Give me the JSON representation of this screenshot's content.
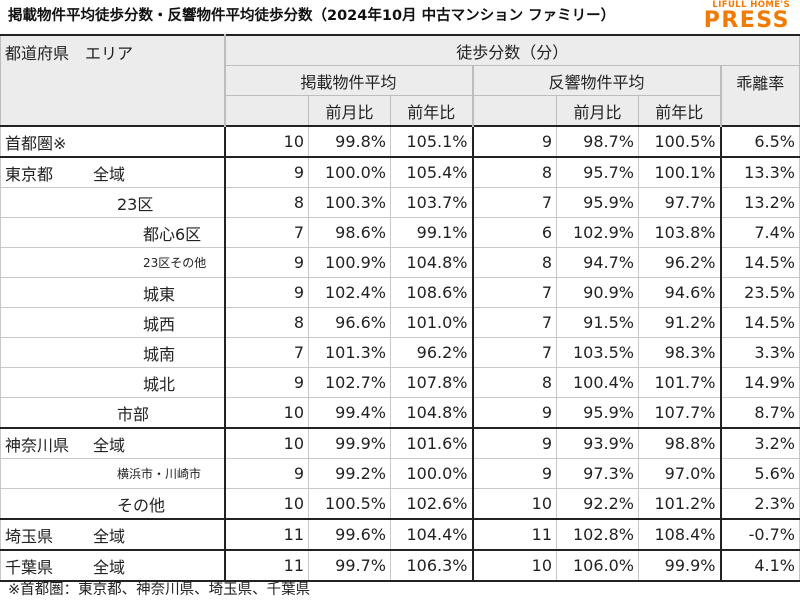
{
  "title": "掲載物件平均徒歩分数・反響物件平均徒歩分数（2024年10月 中古マンション ファミリー）",
  "logo": {
    "line1": "LIFULL HOME'S",
    "line2": "PRESS"
  },
  "colors": {
    "accent": "#f27a00",
    "header_bg": "#ececec",
    "rule": "#222222"
  },
  "header": {
    "region": "都道府県　エリア",
    "group": "徒歩分数（分）",
    "listing": "掲載物件平均",
    "response": "反響物件平均",
    "gap": "乖離率",
    "mom": "前月比",
    "yoy": "前年比"
  },
  "rows": [
    {
      "pref": "首都圏※",
      "area": "",
      "indent": 0,
      "l_min": "10",
      "l_mom": "99.8%",
      "l_yoy": "105.1%",
      "r_min": "9",
      "r_mom": "98.7%",
      "r_yoy": "100.5%",
      "gap": "6.5%"
    },
    {
      "pref": "東京都",
      "area": "全域",
      "indent": 0,
      "l_min": "9",
      "l_mom": "100.0%",
      "l_yoy": "105.4%",
      "r_min": "8",
      "r_mom": "95.7%",
      "r_yoy": "100.1%",
      "gap": "13.3%"
    },
    {
      "pref": "",
      "area": "23区",
      "indent": 1,
      "l_min": "8",
      "l_mom": "100.3%",
      "l_yoy": "103.7%",
      "r_min": "7",
      "r_mom": "95.9%",
      "r_yoy": "97.7%",
      "gap": "13.2%"
    },
    {
      "pref": "",
      "area": "都心6区",
      "indent": 2,
      "l_min": "7",
      "l_mom": "98.6%",
      "l_yoy": "99.1%",
      "r_min": "6",
      "r_mom": "102.9%",
      "r_yoy": "103.8%",
      "gap": "7.4%"
    },
    {
      "pref": "",
      "area": "23区その他",
      "indent": 2,
      "small": true,
      "l_min": "9",
      "l_mom": "100.9%",
      "l_yoy": "104.8%",
      "r_min": "8",
      "r_mom": "94.7%",
      "r_yoy": "96.2%",
      "gap": "14.5%"
    },
    {
      "pref": "",
      "area": "城東",
      "indent": 2,
      "l_min": "9",
      "l_mom": "102.4%",
      "l_yoy": "108.6%",
      "r_min": "7",
      "r_mom": "90.9%",
      "r_yoy": "94.6%",
      "gap": "23.5%"
    },
    {
      "pref": "",
      "area": "城西",
      "indent": 2,
      "l_min": "8",
      "l_mom": "96.6%",
      "l_yoy": "101.0%",
      "r_min": "7",
      "r_mom": "91.5%",
      "r_yoy": "91.2%",
      "gap": "14.5%"
    },
    {
      "pref": "",
      "area": "城南",
      "indent": 2,
      "l_min": "7",
      "l_mom": "101.3%",
      "l_yoy": "96.2%",
      "r_min": "7",
      "r_mom": "103.5%",
      "r_yoy": "98.3%",
      "gap": "3.3%"
    },
    {
      "pref": "",
      "area": "城北",
      "indent": 2,
      "l_min": "9",
      "l_mom": "102.7%",
      "l_yoy": "107.8%",
      "r_min": "8",
      "r_mom": "100.4%",
      "r_yoy": "101.7%",
      "gap": "14.9%"
    },
    {
      "pref": "",
      "area": "市部",
      "indent": 1,
      "l_min": "10",
      "l_mom": "99.4%",
      "l_yoy": "104.8%",
      "r_min": "9",
      "r_mom": "95.9%",
      "r_yoy": "107.7%",
      "gap": "8.7%"
    },
    {
      "pref": "神奈川県",
      "area": "全域",
      "indent": 0,
      "l_min": "10",
      "l_mom": "99.9%",
      "l_yoy": "101.6%",
      "r_min": "9",
      "r_mom": "93.9%",
      "r_yoy": "98.8%",
      "gap": "3.2%"
    },
    {
      "pref": "",
      "area": "横浜市・川崎市",
      "indent": 1,
      "small": true,
      "l_min": "9",
      "l_mom": "99.2%",
      "l_yoy": "100.0%",
      "r_min": "9",
      "r_mom": "97.3%",
      "r_yoy": "97.0%",
      "gap": "5.6%"
    },
    {
      "pref": "",
      "area": "その他",
      "indent": 1,
      "l_min": "10",
      "l_mom": "100.5%",
      "l_yoy": "102.6%",
      "r_min": "10",
      "r_mom": "92.2%",
      "r_yoy": "101.2%",
      "gap": "2.3%"
    },
    {
      "pref": "埼玉県",
      "area": "全域",
      "indent": 0,
      "l_min": "11",
      "l_mom": "99.6%",
      "l_yoy": "104.4%",
      "r_min": "11",
      "r_mom": "102.8%",
      "r_yoy": "108.4%",
      "gap": "-0.7%"
    },
    {
      "pref": "千葉県",
      "area": "全域",
      "indent": 0,
      "l_min": "11",
      "l_mom": "99.7%",
      "l_yoy": "106.3%",
      "r_min": "10",
      "r_mom": "106.0%",
      "r_yoy": "99.9%",
      "gap": "4.1%"
    }
  ],
  "footnote": "※首都圏：東京都、神奈川県、埼玉県、千葉県"
}
